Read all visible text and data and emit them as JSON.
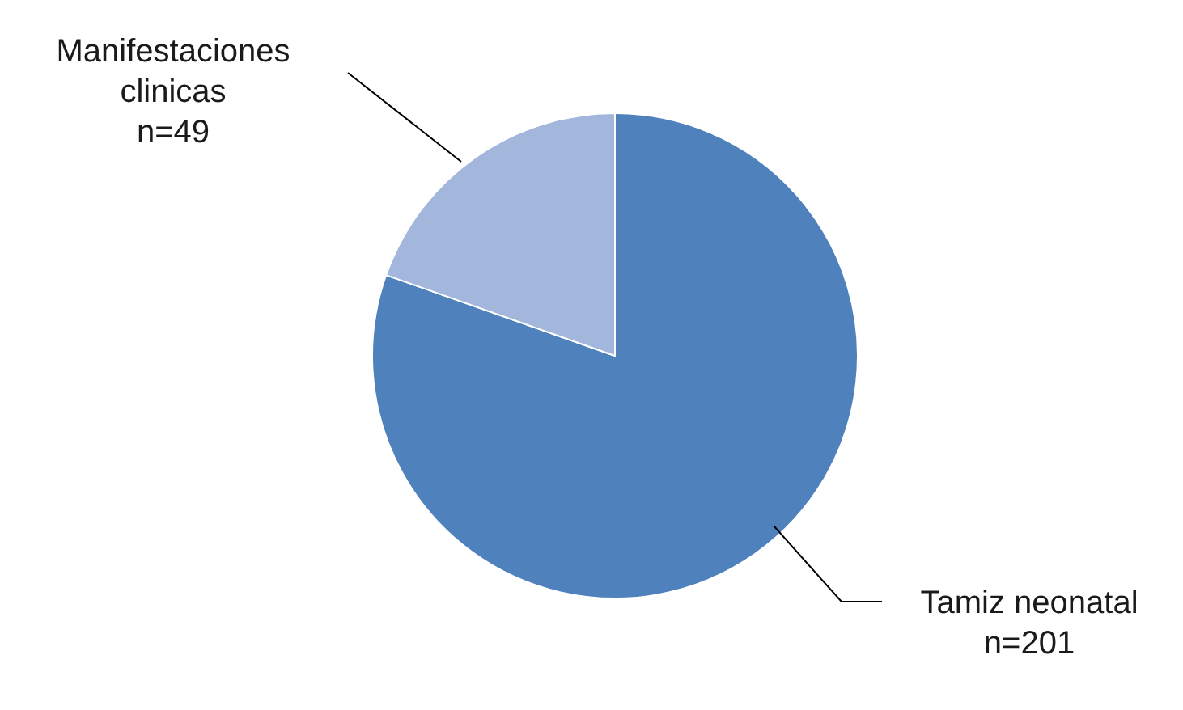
{
  "chart_data": {
    "type": "pie",
    "categories": [
      "Tamiz neonatal",
      "Manifestaciones clinicas"
    ],
    "values": [
      201,
      49
    ],
    "colors": [
      "#4f81bd",
      "#a3b6db"
    ],
    "value_labels": [
      "n=201",
      "n=49"
    ]
  }
}
